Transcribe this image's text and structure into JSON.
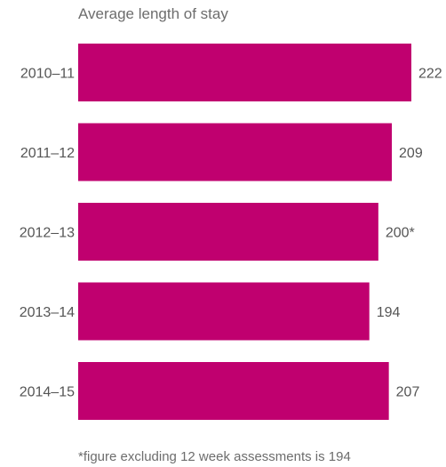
{
  "chart_data": {
    "type": "bar",
    "orientation": "horizontal",
    "title": "Average length of stay",
    "categories": [
      "2010–11",
      "2011–12",
      "2012–13",
      "2013–14",
      "2014–15"
    ],
    "values": [
      222,
      209,
      200,
      194,
      207
    ],
    "value_labels": [
      "222",
      "209",
      "200*",
      "194",
      "207"
    ],
    "xlabel": "",
    "ylabel": "",
    "xlim": [
      0,
      222
    ],
    "grid": false,
    "legend": "none",
    "bar_color": "#c0006f",
    "footnote": "*figure excluding 12 week assessments is 194"
  }
}
